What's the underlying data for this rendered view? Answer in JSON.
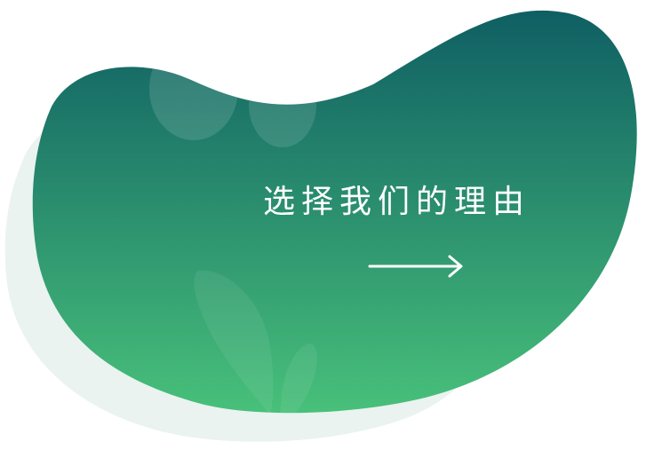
{
  "promo": {
    "label": "选择我们的理由",
    "arrow_icon": "long-arrow-right-icon"
  },
  "colors": {
    "gradient_top": "#0f5f63",
    "gradient_bottom": "#48c07a",
    "shadow": "#eaf3ef",
    "text": "#ffffff"
  }
}
